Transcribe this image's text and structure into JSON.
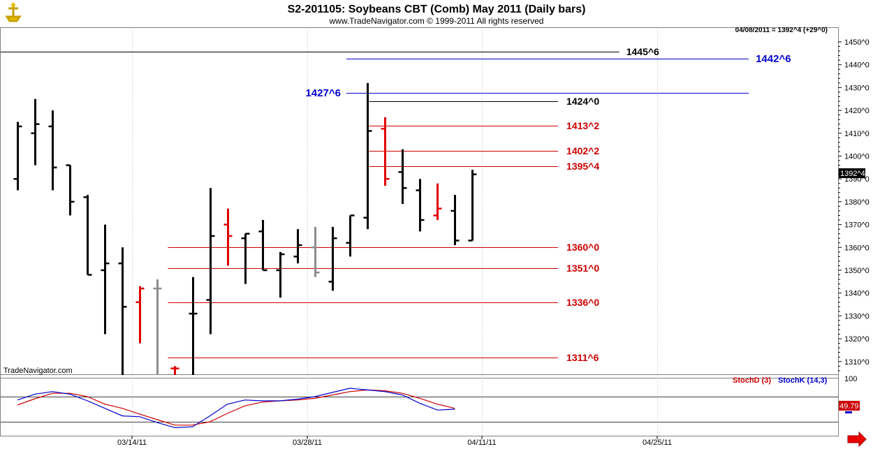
{
  "header": {
    "title": "S2-201105:  Soybeans CBT (Comb) May 2011  (Daily bars)",
    "copyright": "www.TradeNavigator.com © 1999-2011 All rights reserved",
    "last_quote": "04/08/2011 = 1392^4 (+29^0)",
    "watermark": "TradeNavigator.com"
  },
  "colors": {
    "background": "#ffffff",
    "bar_black": "#000000",
    "bar_red": "#e00000",
    "bar_gray": "#8c8c8c",
    "bar_green": "#00a000",
    "level_red": "#cc0000",
    "level_blue": "#0000cc",
    "stoch_d": "#cc0000",
    "stoch_k": "#0000cc",
    "grid": "#c0c0c0"
  },
  "chart_data": {
    "type": "ohlc",
    "price_axis": {
      "ylim": [
        1304,
        1456
      ],
      "tick_labels": [
        "1450^0",
        "1440^0",
        "1430^0",
        "1420^0",
        "1410^0",
        "1400^0",
        "1390^0",
        "1380^0",
        "1370^0",
        "1360^0",
        "1350^0",
        "1340^0",
        "1330^0",
        "1320^0",
        "1310^0"
      ],
      "tick_values": [
        1450,
        1440,
        1430,
        1420,
        1410,
        1400,
        1390,
        1380,
        1370,
        1360,
        1350,
        1340,
        1330,
        1320,
        1310
      ],
      "current_price_label": "1392^4",
      "current_price": 1392.5
    },
    "date_axis": {
      "labels": [
        "03/14/11",
        "03/28/11",
        "04/11/11",
        "04/25/11"
      ],
      "label_slots": [
        7,
        17,
        27,
        37
      ]
    },
    "bars": [
      {
        "slot": 0,
        "open": 1390,
        "high": 1415,
        "low": 1385,
        "close": 1413,
        "color": "black"
      },
      {
        "slot": 1,
        "open": 1410,
        "high": 1425,
        "low": 1396,
        "close": 1414,
        "color": "black"
      },
      {
        "slot": 2,
        "open": 1413,
        "high": 1420,
        "low": 1385,
        "close": 1395,
        "color": "black"
      },
      {
        "slot": 3,
        "open": 1396,
        "high": 1396,
        "low": 1374,
        "close": 1380,
        "color": "black"
      },
      {
        "slot": 4,
        "open": 1382,
        "high": 1383,
        "low": 1348,
        "close": 1348,
        "color": "black"
      },
      {
        "slot": 5,
        "open": 1350,
        "high": 1370,
        "low": 1322,
        "close": 1353,
        "color": "black"
      },
      {
        "slot": 6,
        "open": 1353,
        "high": 1360,
        "low": 1304,
        "close": 1334,
        "color": "black"
      },
      {
        "slot": 7,
        "open": 1336,
        "high": 1343,
        "low": 1318,
        "close": 1342,
        "color": "red"
      },
      {
        "slot": 8,
        "open": 1342,
        "high": 1346,
        "low": 1304,
        "close": 1342,
        "color": "gray"
      },
      {
        "slot": 9,
        "open": 1307,
        "high": 1308,
        "low": 1304,
        "close": 1307,
        "color": "red"
      },
      {
        "slot": 10,
        "open": 1331,
        "high": 1347,
        "low": 1304,
        "close": 1331,
        "color": "black"
      },
      {
        "slot": 11,
        "open": 1337,
        "high": 1386,
        "low": 1322,
        "close": 1365,
        "color": "black"
      },
      {
        "slot": 12,
        "open": 1370,
        "high": 1377,
        "low": 1352,
        "close": 1365,
        "color": "red"
      },
      {
        "slot": 13,
        "open": 1364,
        "high": 1366,
        "low": 1344,
        "close": 1366,
        "color": "black"
      },
      {
        "slot": 14,
        "open": 1367,
        "high": 1372,
        "low": 1350,
        "close": 1350,
        "color": "black"
      },
      {
        "slot": 15,
        "open": 1350,
        "high": 1358,
        "low": 1338,
        "close": 1357,
        "color": "black"
      },
      {
        "slot": 16,
        "open": 1356,
        "high": 1368,
        "low": 1353,
        "close": 1361,
        "color": "black"
      },
      {
        "slot": 17,
        "open": 1360,
        "high": 1369,
        "low": 1347,
        "close": 1349,
        "color": "gray"
      },
      {
        "slot": 18,
        "open": 1345,
        "high": 1369,
        "low": 1341,
        "close": 1364,
        "color": "black"
      },
      {
        "slot": 19,
        "open": 1362,
        "high": 1374,
        "low": 1356,
        "close": 1374,
        "color": "black"
      },
      {
        "slot": 20,
        "open": 1373,
        "high": 1432,
        "low": 1368,
        "close": 1411,
        "color": "black"
      },
      {
        "slot": 21,
        "open": 1412,
        "high": 1417,
        "low": 1387,
        "close": 1390,
        "color": "red"
      },
      {
        "slot": 22,
        "open": 1393,
        "high": 1403,
        "low": 1379,
        "close": 1386,
        "color": "black"
      },
      {
        "slot": 23,
        "open": 1385,
        "high": 1390,
        "low": 1367,
        "close": 1372,
        "color": "black"
      },
      {
        "slot": 24,
        "open": 1374,
        "high": 1388,
        "low": 1372,
        "close": 1377,
        "color": "red"
      },
      {
        "slot": 25,
        "open": 1376,
        "high": 1383,
        "low": 1361,
        "close": 1363,
        "color": "black"
      },
      {
        "slot": 26,
        "open": 1363,
        "high": 1394,
        "low": 1363,
        "close": 1392,
        "color": "black"
      }
    ],
    "levels": [
      {
        "label": "1445^6",
        "value": 1445.75,
        "color": "black",
        "x_start_slot": -1,
        "x_end_slot": 34.4
      },
      {
        "label": "1442^6",
        "value": 1442.75,
        "color": "blue",
        "x_start_slot": 18.8,
        "x_end_slot": 41.8
      },
      {
        "label": "1427^6",
        "value": 1427.75,
        "color": "blue",
        "x_start_slot": 18.8,
        "x_end_slot": 41.8
      },
      {
        "label": "1424^0",
        "value": 1424,
        "color": "black",
        "x_start_slot": 20.1,
        "x_end_slot": 30.9
      },
      {
        "label": "1413^2",
        "value": 1413.25,
        "color": "red",
        "x_start_slot": 20.1,
        "x_end_slot": 30.9
      },
      {
        "label": "1402^2",
        "value": 1402.25,
        "color": "red",
        "x_start_slot": 20.1,
        "x_end_slot": 30.9
      },
      {
        "label": "1395^4",
        "value": 1395.5,
        "color": "red",
        "x_start_slot": 20.1,
        "x_end_slot": 30.9
      },
      {
        "label": "1360^0",
        "value": 1360,
        "color": "red",
        "x_start_slot": 8.6,
        "x_end_slot": 30.9
      },
      {
        "label": "1351^0",
        "value": 1351,
        "color": "red",
        "x_start_slot": 8.6,
        "x_end_slot": 30.9
      },
      {
        "label": "1336^0",
        "value": 1336,
        "color": "red",
        "x_start_slot": 8.6,
        "x_end_slot": 30.9
      },
      {
        "label": "1311^6",
        "value": 1311.75,
        "color": "red",
        "x_start_slot": 8.6,
        "x_end_slot": 30.9
      }
    ],
    "stochastic": {
      "legend_d": "StochD (3)",
      "legend_k": "StochK (14,3)",
      "top_label": "100",
      "current_value_label": "49.79",
      "ylim": [
        0,
        100
      ],
      "ref_lines": [
        80,
        20
      ],
      "k_values": [
        72,
        86,
        92,
        86,
        70,
        52,
        34,
        32,
        18,
        6,
        8,
        34,
        62,
        72,
        70,
        70,
        74,
        80,
        90,
        100,
        96,
        92,
        84,
        64,
        48,
        50
      ],
      "d_values": [
        60,
        75,
        88,
        88,
        80,
        62,
        52,
        38,
        25,
        12,
        12,
        20,
        40,
        58,
        67,
        70,
        72,
        76,
        84,
        92,
        96,
        94,
        88,
        76,
        62,
        52
      ]
    }
  }
}
